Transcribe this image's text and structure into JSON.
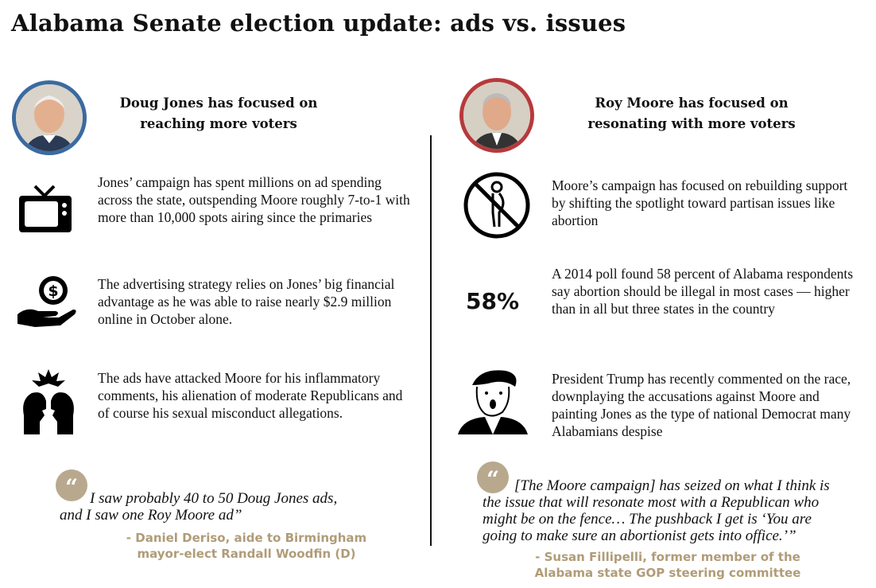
{
  "title": "Alabama Senate election update: ads vs. issues",
  "colors": {
    "jones_accent": "#3b6aa0",
    "moore_accent": "#b7393c",
    "quote_accent": "#b8a98e",
    "attribution": "#b09c78"
  },
  "left": {
    "heading": [
      "Doug Jones has focused on",
      "reaching more voters"
    ],
    "items": [
      {
        "icon": "tv-icon",
        "text": "Jones’ campaign has spent millions on ad spending across the state, outspending Moore roughly 7-to-1 with more than 10,000 spots airing since the primaries"
      },
      {
        "icon": "money-hand-icon",
        "text": "The advertising strategy relies on Jones’ big financial advantage as he was able to raise nearly $2.9 million online in October alone."
      },
      {
        "icon": "clashing-heads-icon",
        "text": "The ads have attacked Moore for his inflammatory comments, his alienation of moderate Republicans and of course his sexual misconduct allegations."
      }
    ],
    "quote": {
      "mark": "“",
      "text": "I saw probably 40 to 50 Doug Jones ads, and I saw one Roy Moore ad”",
      "attribution": [
        "- Daniel Deriso, aide to Birmingham",
        "mayor-elect Randall Woodfin (D)"
      ]
    }
  },
  "right": {
    "heading": [
      "Roy Moore has focused on",
      "resonating with more voters"
    ],
    "items": [
      {
        "icon": "no-abortion-icon",
        "text": "Moore’s campaign has focused on rebuilding support by shifting the spotlight toward partisan issues like abortion"
      },
      {
        "stat": "58%",
        "text": "A 2014 poll found 58 percent of Alabama respondents say abortion should be illegal in most cases — higher than in all but three states in the country"
      },
      {
        "icon": "trump-caricature-icon",
        "text": "President Trump has recently commented on the race, downplaying the accusations against Moore and painting Jones as the type of national Democrat many Alabamians despise"
      }
    ],
    "quote": {
      "mark": "“",
      "text": "[The Moore campaign] has seized on what I think is the issue that will resonate most with a Republican who might be on the fence… The pushback I get is ‘You are going to make sure an abortionist gets into office.’”",
      "attribution": [
        "- Susan Fillipelli, former member of the",
        "Alabama state GOP steering committee"
      ]
    }
  }
}
